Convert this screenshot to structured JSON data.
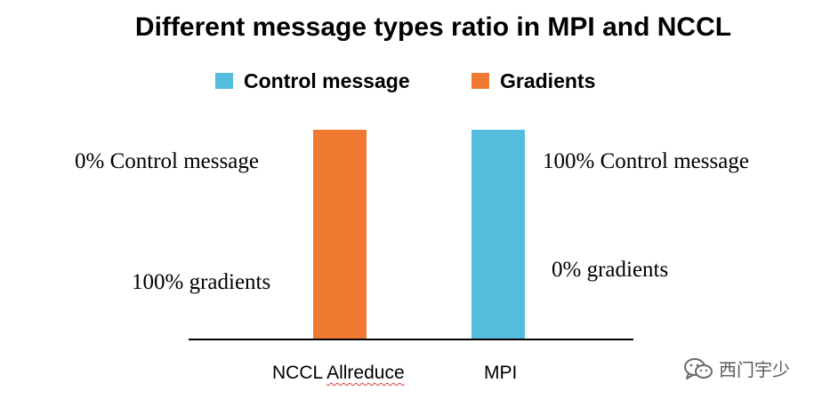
{
  "chart_data": {
    "type": "bar",
    "title": "Different message types ratio in MPI and NCCL",
    "categories": [
      "NCCL Allreduce",
      "MPI"
    ],
    "series": [
      {
        "name": "Control message",
        "color": "#54bcdc",
        "values": [
          0,
          100
        ]
      },
      {
        "name": "Gradients",
        "color": "#f07a32",
        "values": [
          100,
          0
        ]
      }
    ],
    "ylim": [
      0,
      100
    ],
    "stacked": true,
    "grid": false,
    "legend_position": "top-center",
    "annotations": [
      "0% Control message",
      "100% gradients",
      "100% Control message",
      "0% gradients"
    ]
  },
  "watermark": {
    "icon": "wechat-icon",
    "text": "西门宇少"
  }
}
